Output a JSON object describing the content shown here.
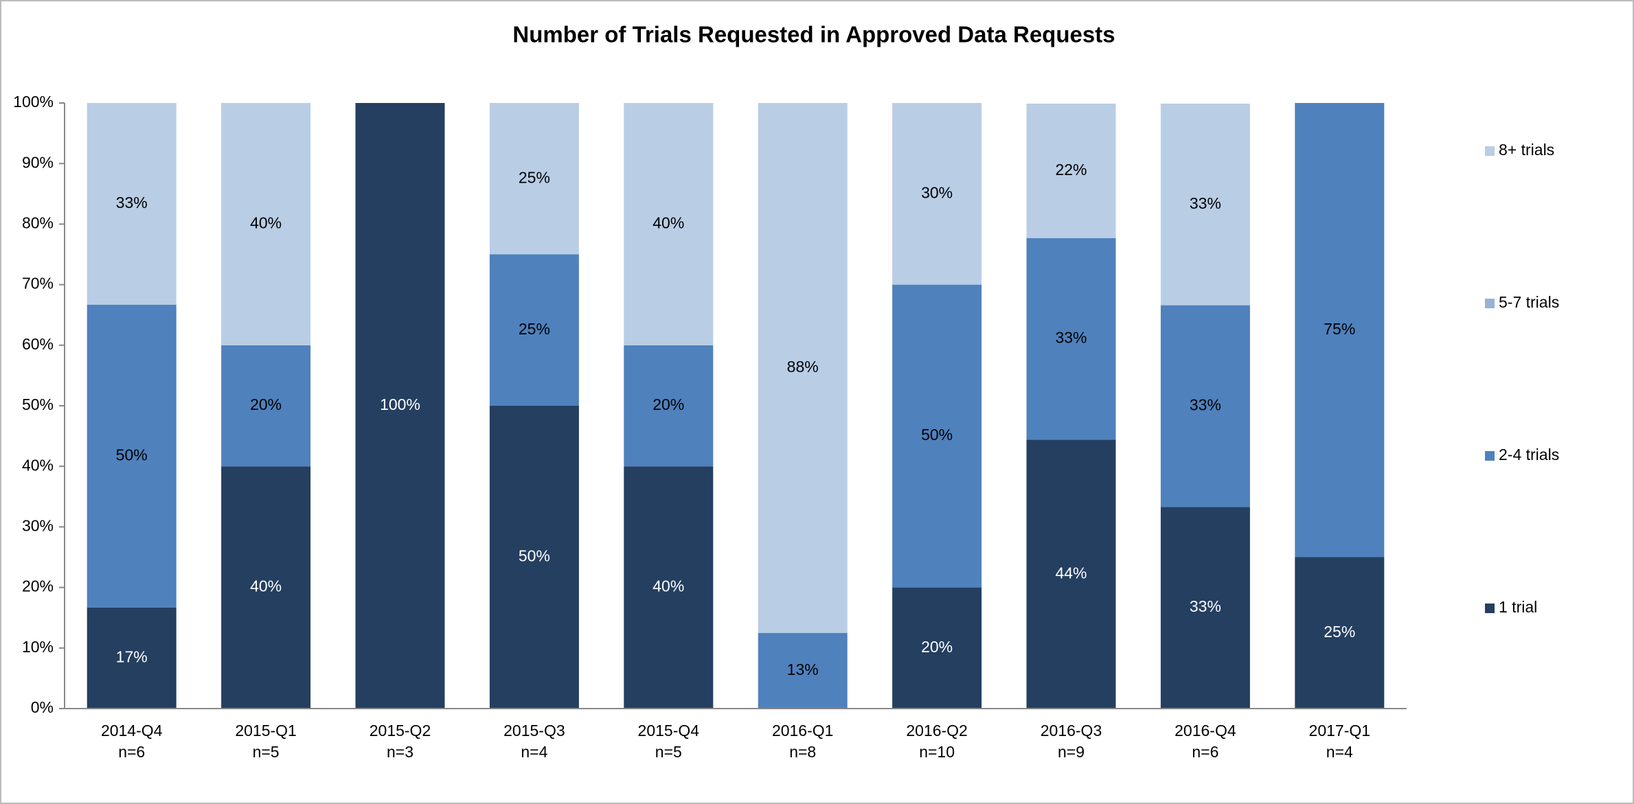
{
  "chart_data": {
    "type": "stacked_bar_percent",
    "title": "Number of Trials Requested in Approved Data Requests",
    "categories": [
      "2014-Q4",
      "2015-Q1",
      "2015-Q2",
      "2015-Q3",
      "2015-Q4",
      "2016-Q1",
      "2016-Q2",
      "2016-Q3",
      "2016-Q4",
      "2017-Q1"
    ],
    "sample_sizes": [
      "n=6",
      "n=5",
      "n=3",
      "n=4",
      "n=5",
      "n=8",
      "n=10",
      "n=9",
      "n=6",
      "n=4"
    ],
    "series": [
      {
        "name": "1 trial",
        "color": "#243f60",
        "values": [
          16.7,
          40,
          100,
          50,
          40,
          0,
          20,
          44.4,
          33.3,
          25
        ],
        "value_labels": [
          "17%",
          "40%",
          "100%",
          "50%",
          "40%",
          null,
          "20%",
          "44%",
          "33%",
          "25%"
        ]
      },
      {
        "name": "2-4 trials",
        "color": "#4f81bd",
        "values": [
          50,
          20,
          0,
          25,
          20,
          12.5,
          50,
          33.3,
          33.3,
          75
        ],
        "value_labels": [
          "50%",
          "20%",
          null,
          "25%",
          "20%",
          "13%",
          "50%",
          "33%",
          "33%",
          "75%"
        ]
      },
      {
        "name": "5-7 trials",
        "color": "#95b3d7",
        "values": [
          0,
          0,
          0,
          0,
          0,
          0,
          0,
          0,
          0,
          0
        ],
        "value_labels": [
          null,
          null,
          null,
          null,
          null,
          null,
          null,
          null,
          null,
          null
        ]
      },
      {
        "name": "8+ trials",
        "color": "#b9cde5",
        "values": [
          33.3,
          40,
          0,
          25,
          40,
          87.5,
          30,
          22.2,
          33.3,
          0
        ],
        "value_labels": [
          "33%",
          "40%",
          null,
          "25%",
          "40%",
          "88%",
          "30%",
          "22%",
          "33%",
          null
        ]
      }
    ],
    "ylim": [
      0,
      100
    ],
    "yticks": [
      {
        "value": 0,
        "label": "0%"
      },
      {
        "value": 10,
        "label": "10%"
      },
      {
        "value": 20,
        "label": "20%"
      },
      {
        "value": 30,
        "label": "30%"
      },
      {
        "value": 40,
        "label": "40%"
      },
      {
        "value": 50,
        "label": "50%"
      },
      {
        "value": 60,
        "label": "60%"
      },
      {
        "value": 70,
        "label": "70%"
      },
      {
        "value": 80,
        "label": "80%"
      },
      {
        "value": 90,
        "label": "90%"
      },
      {
        "value": 100,
        "label": "100%"
      }
    ],
    "grid": false,
    "legend": "right"
  }
}
